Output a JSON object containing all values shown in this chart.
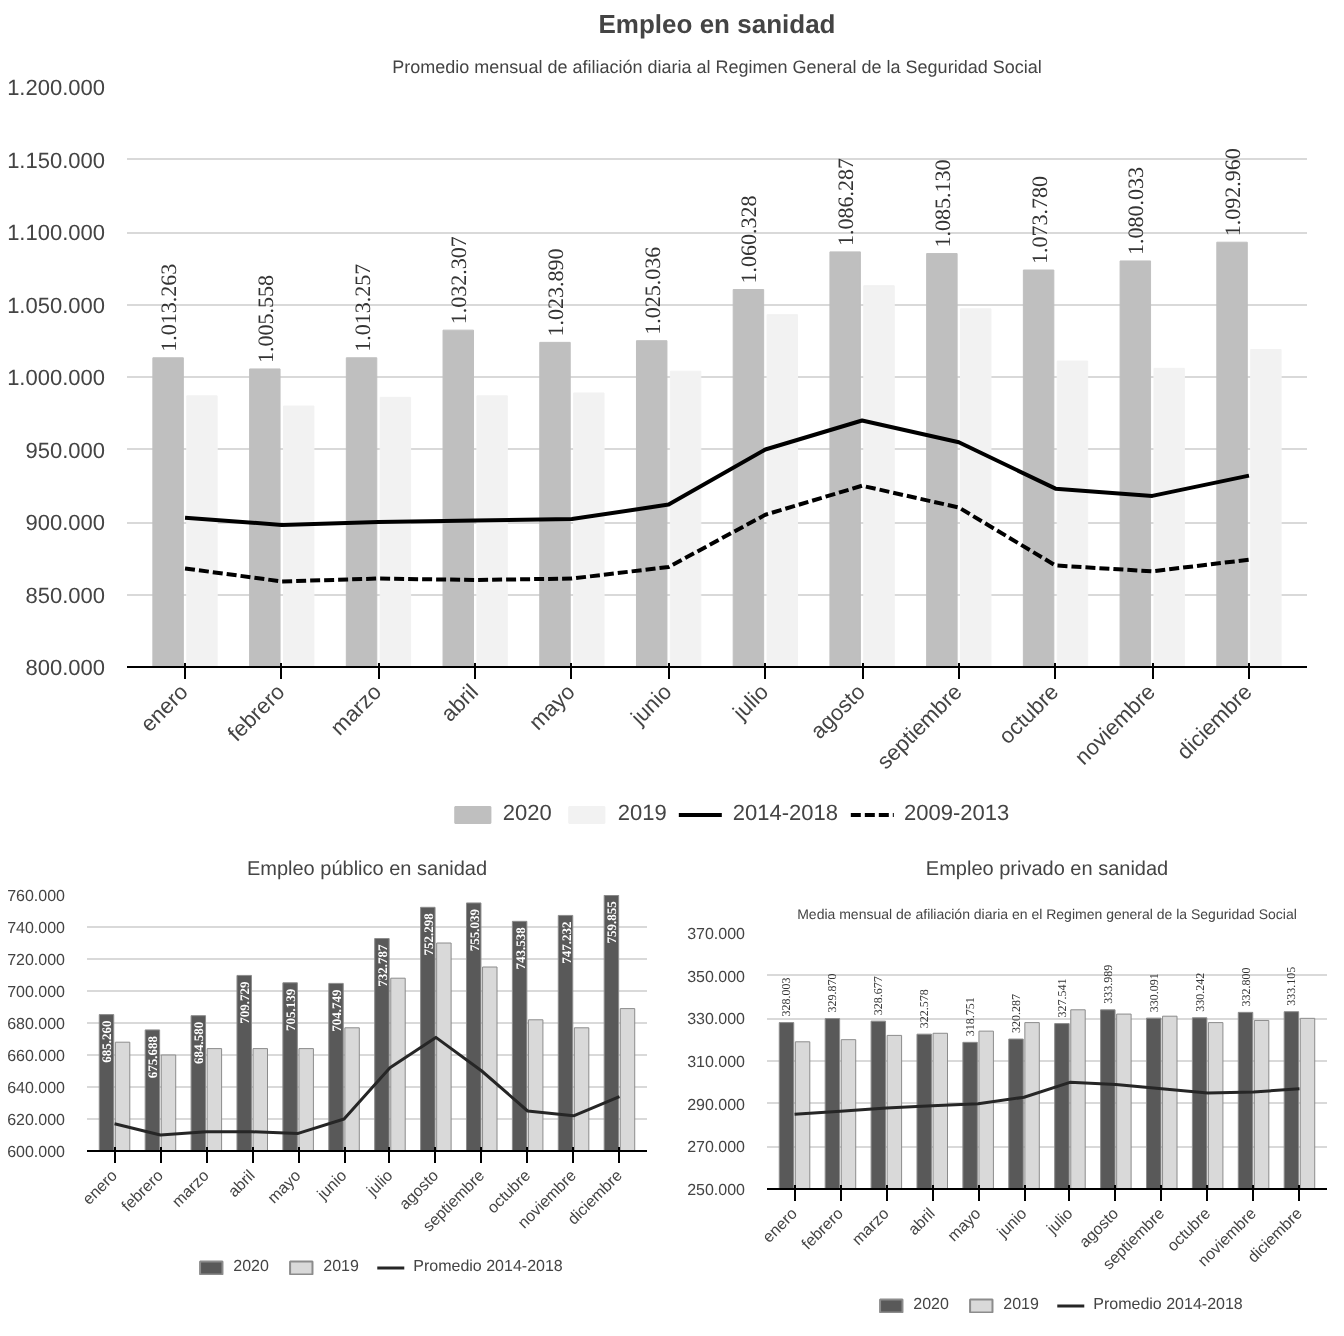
{
  "chart_data": [
    {
      "type": "bar",
      "title": "Empleo en sanidad",
      "subtitle": "Promedio mensual de afiliación diaria al Regimen General de la Seguridad Social",
      "categories": [
        "enero",
        "febrero",
        "marzo",
        "abril",
        "mayo",
        "junio",
        "julio",
        "agosto",
        "septiembre",
        "octubre",
        "noviembre",
        "diciembre"
      ],
      "ylim": [
        800000,
        1200000
      ],
      "yticks": [
        {
          "value": 800000,
          "label": "800.000"
        },
        {
          "value": 850000,
          "label": "850.000"
        },
        {
          "value": 900000,
          "label": "900.000"
        },
        {
          "value": 950000,
          "label": "950.000"
        },
        {
          "value": 1000000,
          "label": "1.000.000"
        },
        {
          "value": 1050000,
          "label": "1.050.000"
        },
        {
          "value": 1100000,
          "label": "1.100.000"
        },
        {
          "value": 1150000,
          "label": "1.150.000"
        },
        {
          "value": 1200000,
          "label": "1.200.000"
        }
      ],
      "grid": "y",
      "legend": "bottom",
      "series": [
        {
          "name": "2020",
          "type": "bar",
          "color": "#bfbfbf",
          "values": [
            1013263,
            1005558,
            1013257,
            1032307,
            1023890,
            1025036,
            1060328,
            1086287,
            1085130,
            1073780,
            1080033,
            1092960
          ],
          "value_labels": [
            "1.013.263",
            "1.005.558",
            "1.013.257",
            "1.032.307",
            "1.023.890",
            "1.025.036",
            "1.060.328",
            "1.086.287",
            "1.085.130",
            "1.073.780",
            "1.080.033",
            "1.092.960"
          ]
        },
        {
          "name": "2019",
          "type": "bar",
          "color": "#f2f2f2",
          "values": [
            987000,
            980000,
            986000,
            987000,
            989000,
            1004000,
            1043000,
            1063000,
            1047000,
            1011000,
            1006000,
            1019000
          ]
        },
        {
          "name": "2014-2018",
          "type": "line",
          "color": "#000000",
          "line_style": "solid",
          "values": [
            903000,
            898000,
            900000,
            901000,
            902000,
            912000,
            950000,
            970000,
            955000,
            923000,
            918000,
            932000
          ]
        },
        {
          "name": "2009-2013",
          "type": "line",
          "color": "#000000",
          "line_style": "dashed",
          "values": [
            868000,
            859000,
            861000,
            860000,
            861000,
            869000,
            905000,
            925000,
            910000,
            870000,
            866000,
            874000
          ]
        }
      ]
    },
    {
      "type": "bar",
      "title": "Empleo público en sanidad",
      "categories": [
        "enero",
        "febrero",
        "marzo",
        "abril",
        "mayo",
        "junio",
        "julio",
        "agosto",
        "septiembre",
        "octubre",
        "noviembre",
        "diciembre"
      ],
      "ylim": [
        600000,
        760000
      ],
      "yticks": [
        {
          "value": 600000,
          "label": "600.000"
        },
        {
          "value": 620000,
          "label": "620.000"
        },
        {
          "value": 640000,
          "label": "640.000"
        },
        {
          "value": 660000,
          "label": "660.000"
        },
        {
          "value": 680000,
          "label": "680.000"
        },
        {
          "value": 700000,
          "label": "700.000"
        },
        {
          "value": 720000,
          "label": "720.000"
        },
        {
          "value": 740000,
          "label": "740.000"
        },
        {
          "value": 760000,
          "label": "760.000"
        }
      ],
      "grid": "y",
      "legend": "bottom",
      "series": [
        {
          "name": "2020",
          "type": "bar",
          "color": "#595959",
          "values": [
            685260,
            675688,
            684580,
            709729,
            705139,
            704749,
            732787,
            752298,
            755039,
            743538,
            747232,
            759855
          ],
          "value_labels": [
            "685.260",
            "675.688",
            "684.580",
            "709.729",
            "705.139",
            "704.749",
            "732.787",
            "752.298",
            "755.039",
            "743.538",
            "747.232",
            "759.855"
          ]
        },
        {
          "name": "2019",
          "type": "bar",
          "color": "#d9d9d9",
          "values": [
            668000,
            660000,
            664000,
            664000,
            664000,
            677000,
            708000,
            730000,
            715000,
            682000,
            677000,
            689000
          ]
        },
        {
          "name": "Promedio 2014-2018",
          "type": "line",
          "color": "#262626",
          "line_style": "solid",
          "values": [
            617000,
            610000,
            612000,
            612000,
            611000,
            620000,
            652000,
            671000,
            650000,
            625000,
            622000,
            634000
          ]
        }
      ]
    },
    {
      "type": "bar",
      "title": "Empleo privado en sanidad",
      "subtitle": "Media mensual de afiliación diaria en el Regimen general de la Seguridad Social",
      "categories": [
        "enero",
        "febrero",
        "marzo",
        "abril",
        "mayo",
        "junio",
        "julio",
        "agosto",
        "septiembre",
        "octubre",
        "noviembre",
        "diciembre"
      ],
      "ylim": [
        250000,
        370000
      ],
      "yticks": [
        {
          "value": 250000,
          "label": "250.000"
        },
        {
          "value": 270000,
          "label": "270.000"
        },
        {
          "value": 290000,
          "label": "290.000"
        },
        {
          "value": 310000,
          "label": "310.000"
        },
        {
          "value": 330000,
          "label": "330.000"
        },
        {
          "value": 350000,
          "label": "350.000"
        },
        {
          "value": 370000,
          "label": "370.000"
        }
      ],
      "grid": "y",
      "legend": "bottom",
      "series": [
        {
          "name": "2020",
          "type": "bar",
          "color": "#595959",
          "values": [
            328003,
            329870,
            328677,
            322578,
            318751,
            320287,
            327541,
            333989,
            330091,
            330242,
            332800,
            333105
          ],
          "value_labels": [
            "328.003",
            "329.870",
            "328.677",
            "322.578",
            "318.751",
            "320.287",
            "327.541",
            "333.989",
            "330.091",
            "330.242",
            "332.800",
            "333.105"
          ]
        },
        {
          "name": "2019",
          "type": "bar",
          "color": "#d9d9d9",
          "values": [
            319000,
            320000,
            322000,
            323000,
            324000,
            328000,
            334000,
            332000,
            331000,
            328000,
            329000,
            330000
          ]
        },
        {
          "name": "Promedio 2014-2018",
          "type": "line",
          "color": "#262626",
          "line_style": "solid",
          "values": [
            285000,
            286500,
            288000,
            289000,
            290000,
            293000,
            300000,
            299000,
            297000,
            295000,
            295500,
            297000
          ]
        }
      ]
    }
  ]
}
